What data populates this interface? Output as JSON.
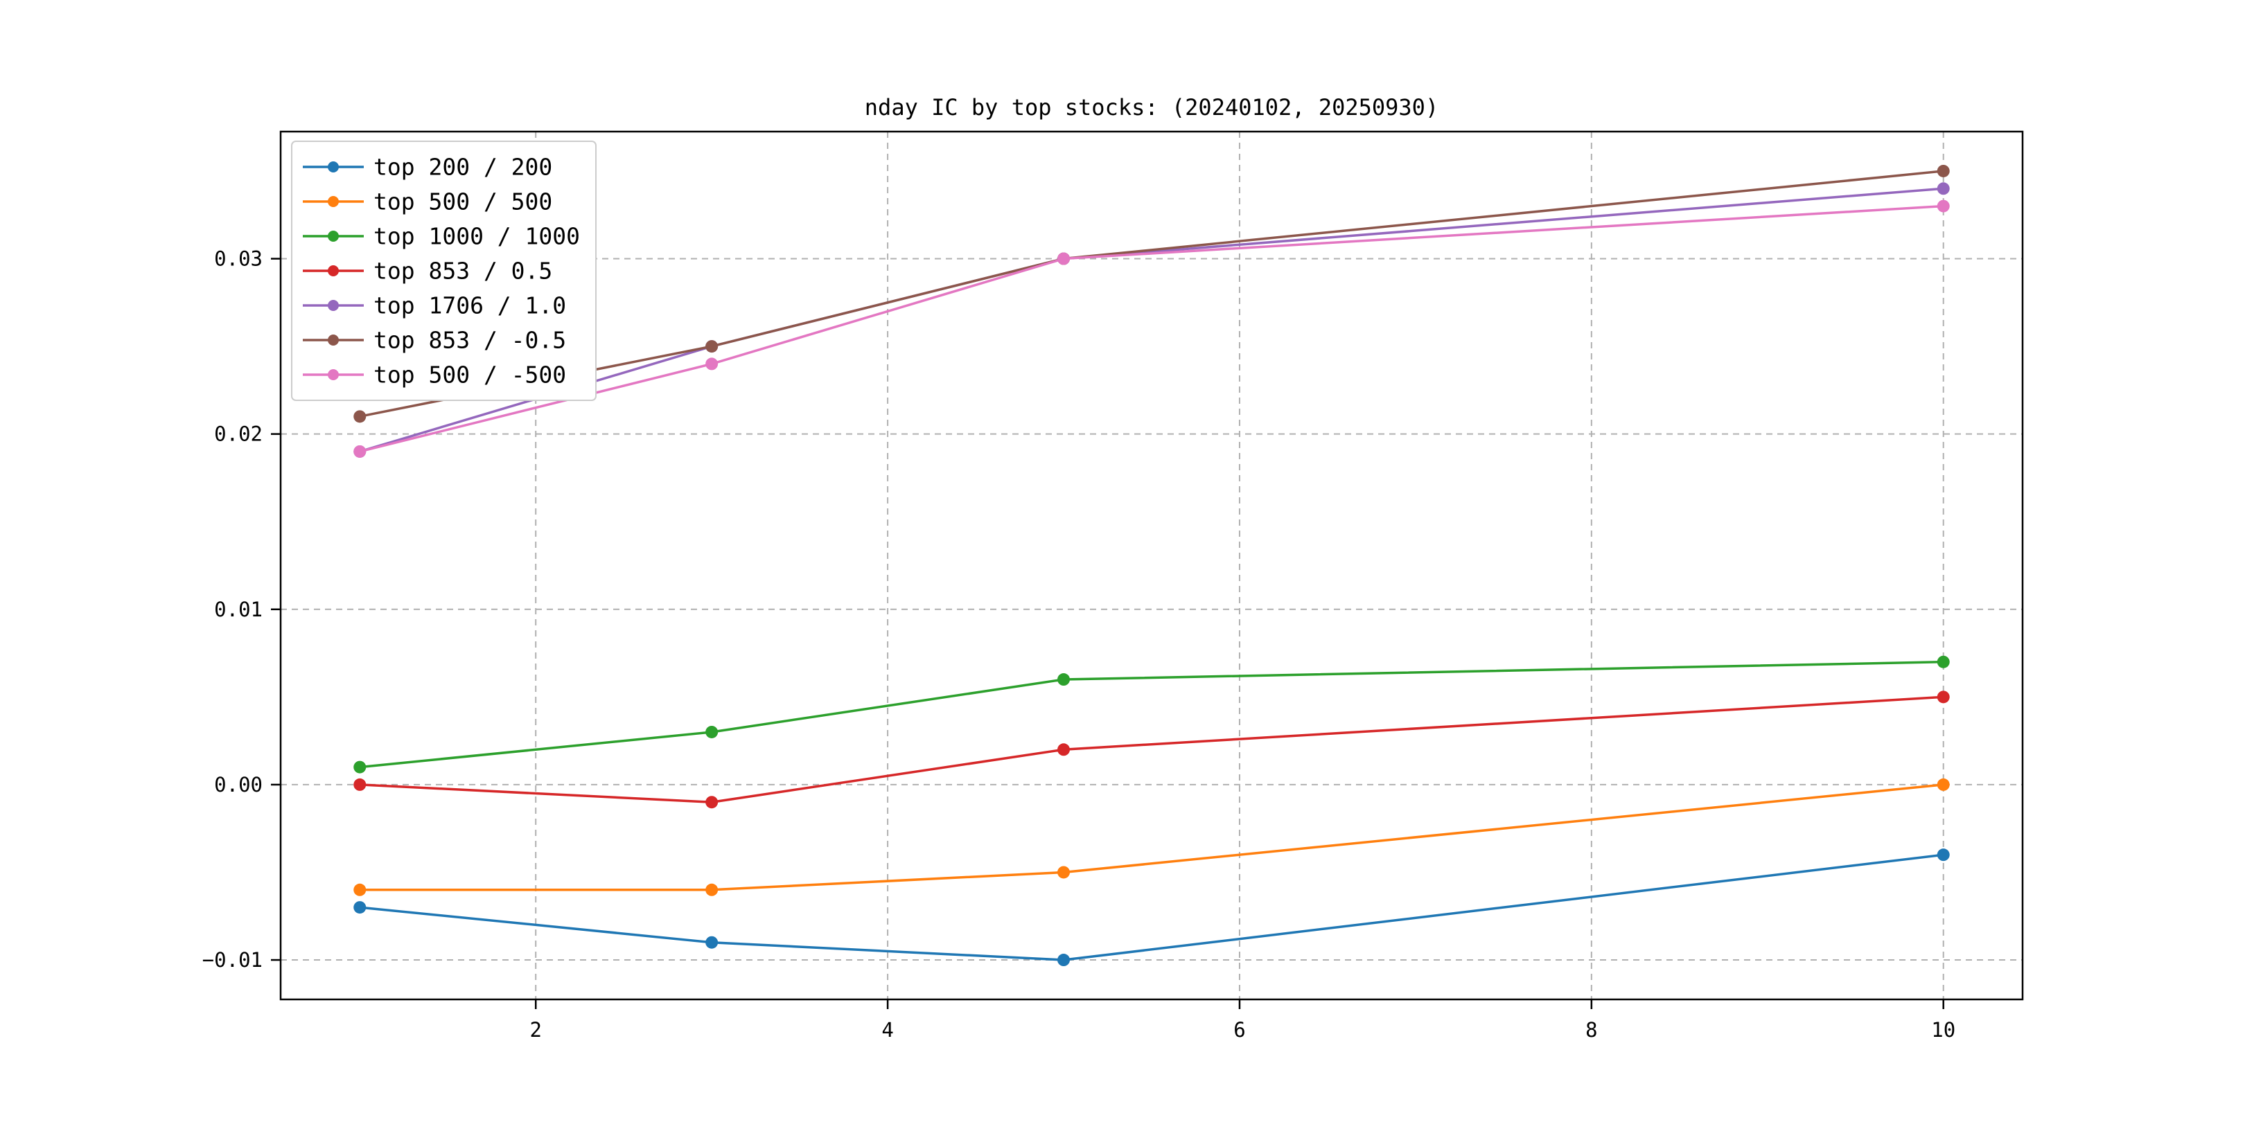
{
  "figure": {
    "background": "#ffffff"
  },
  "chart_data": {
    "type": "line",
    "title": "nday IC by top stocks: (20240102, 20250930)",
    "xlabel": "",
    "ylabel": "",
    "x": [
      1,
      3,
      5,
      10
    ],
    "series": [
      {
        "name": "top 200 / 200",
        "color": "#1f77b4",
        "values": [
          -0.007,
          -0.009,
          -0.01,
          -0.004
        ]
      },
      {
        "name": "top 500 / 500",
        "color": "#ff7f0e",
        "values": [
          -0.006,
          -0.006,
          -0.005,
          0.0
        ]
      },
      {
        "name": "top 1000 / 1000",
        "color": "#2ca02c",
        "values": [
          0.001,
          0.003,
          0.006,
          0.007
        ]
      },
      {
        "name": "top 853 / 0.5",
        "color": "#d62728",
        "values": [
          0.0,
          -0.001,
          0.002,
          0.005
        ]
      },
      {
        "name": "top 1706 / 1.0",
        "color": "#9467bd",
        "values": [
          0.019,
          0.025,
          0.03,
          0.034
        ]
      },
      {
        "name": "top 853 / -0.5",
        "color": "#8c564b",
        "values": [
          0.021,
          0.025,
          0.03,
          0.035
        ]
      },
      {
        "name": "top 500 / -500",
        "color": "#e377c2",
        "values": [
          0.019,
          0.024,
          0.03,
          0.033
        ]
      }
    ],
    "xlim": [
      0.55,
      10.45
    ],
    "ylim": [
      -0.01225,
      0.03725
    ],
    "xticks": [
      {
        "value": 2,
        "label": "2"
      },
      {
        "value": 4,
        "label": "4"
      },
      {
        "value": 6,
        "label": "6"
      },
      {
        "value": 8,
        "label": "8"
      },
      {
        "value": 10,
        "label": "10"
      }
    ],
    "yticks": [
      {
        "value": -0.01,
        "label": "−0.01"
      },
      {
        "value": 0.0,
        "label": "0.00"
      },
      {
        "value": 0.01,
        "label": "0.01"
      },
      {
        "value": 0.02,
        "label": "0.02"
      },
      {
        "value": 0.03,
        "label": "0.03"
      }
    ],
    "grid": true,
    "legend_position": "upper left",
    "marker": "o"
  }
}
